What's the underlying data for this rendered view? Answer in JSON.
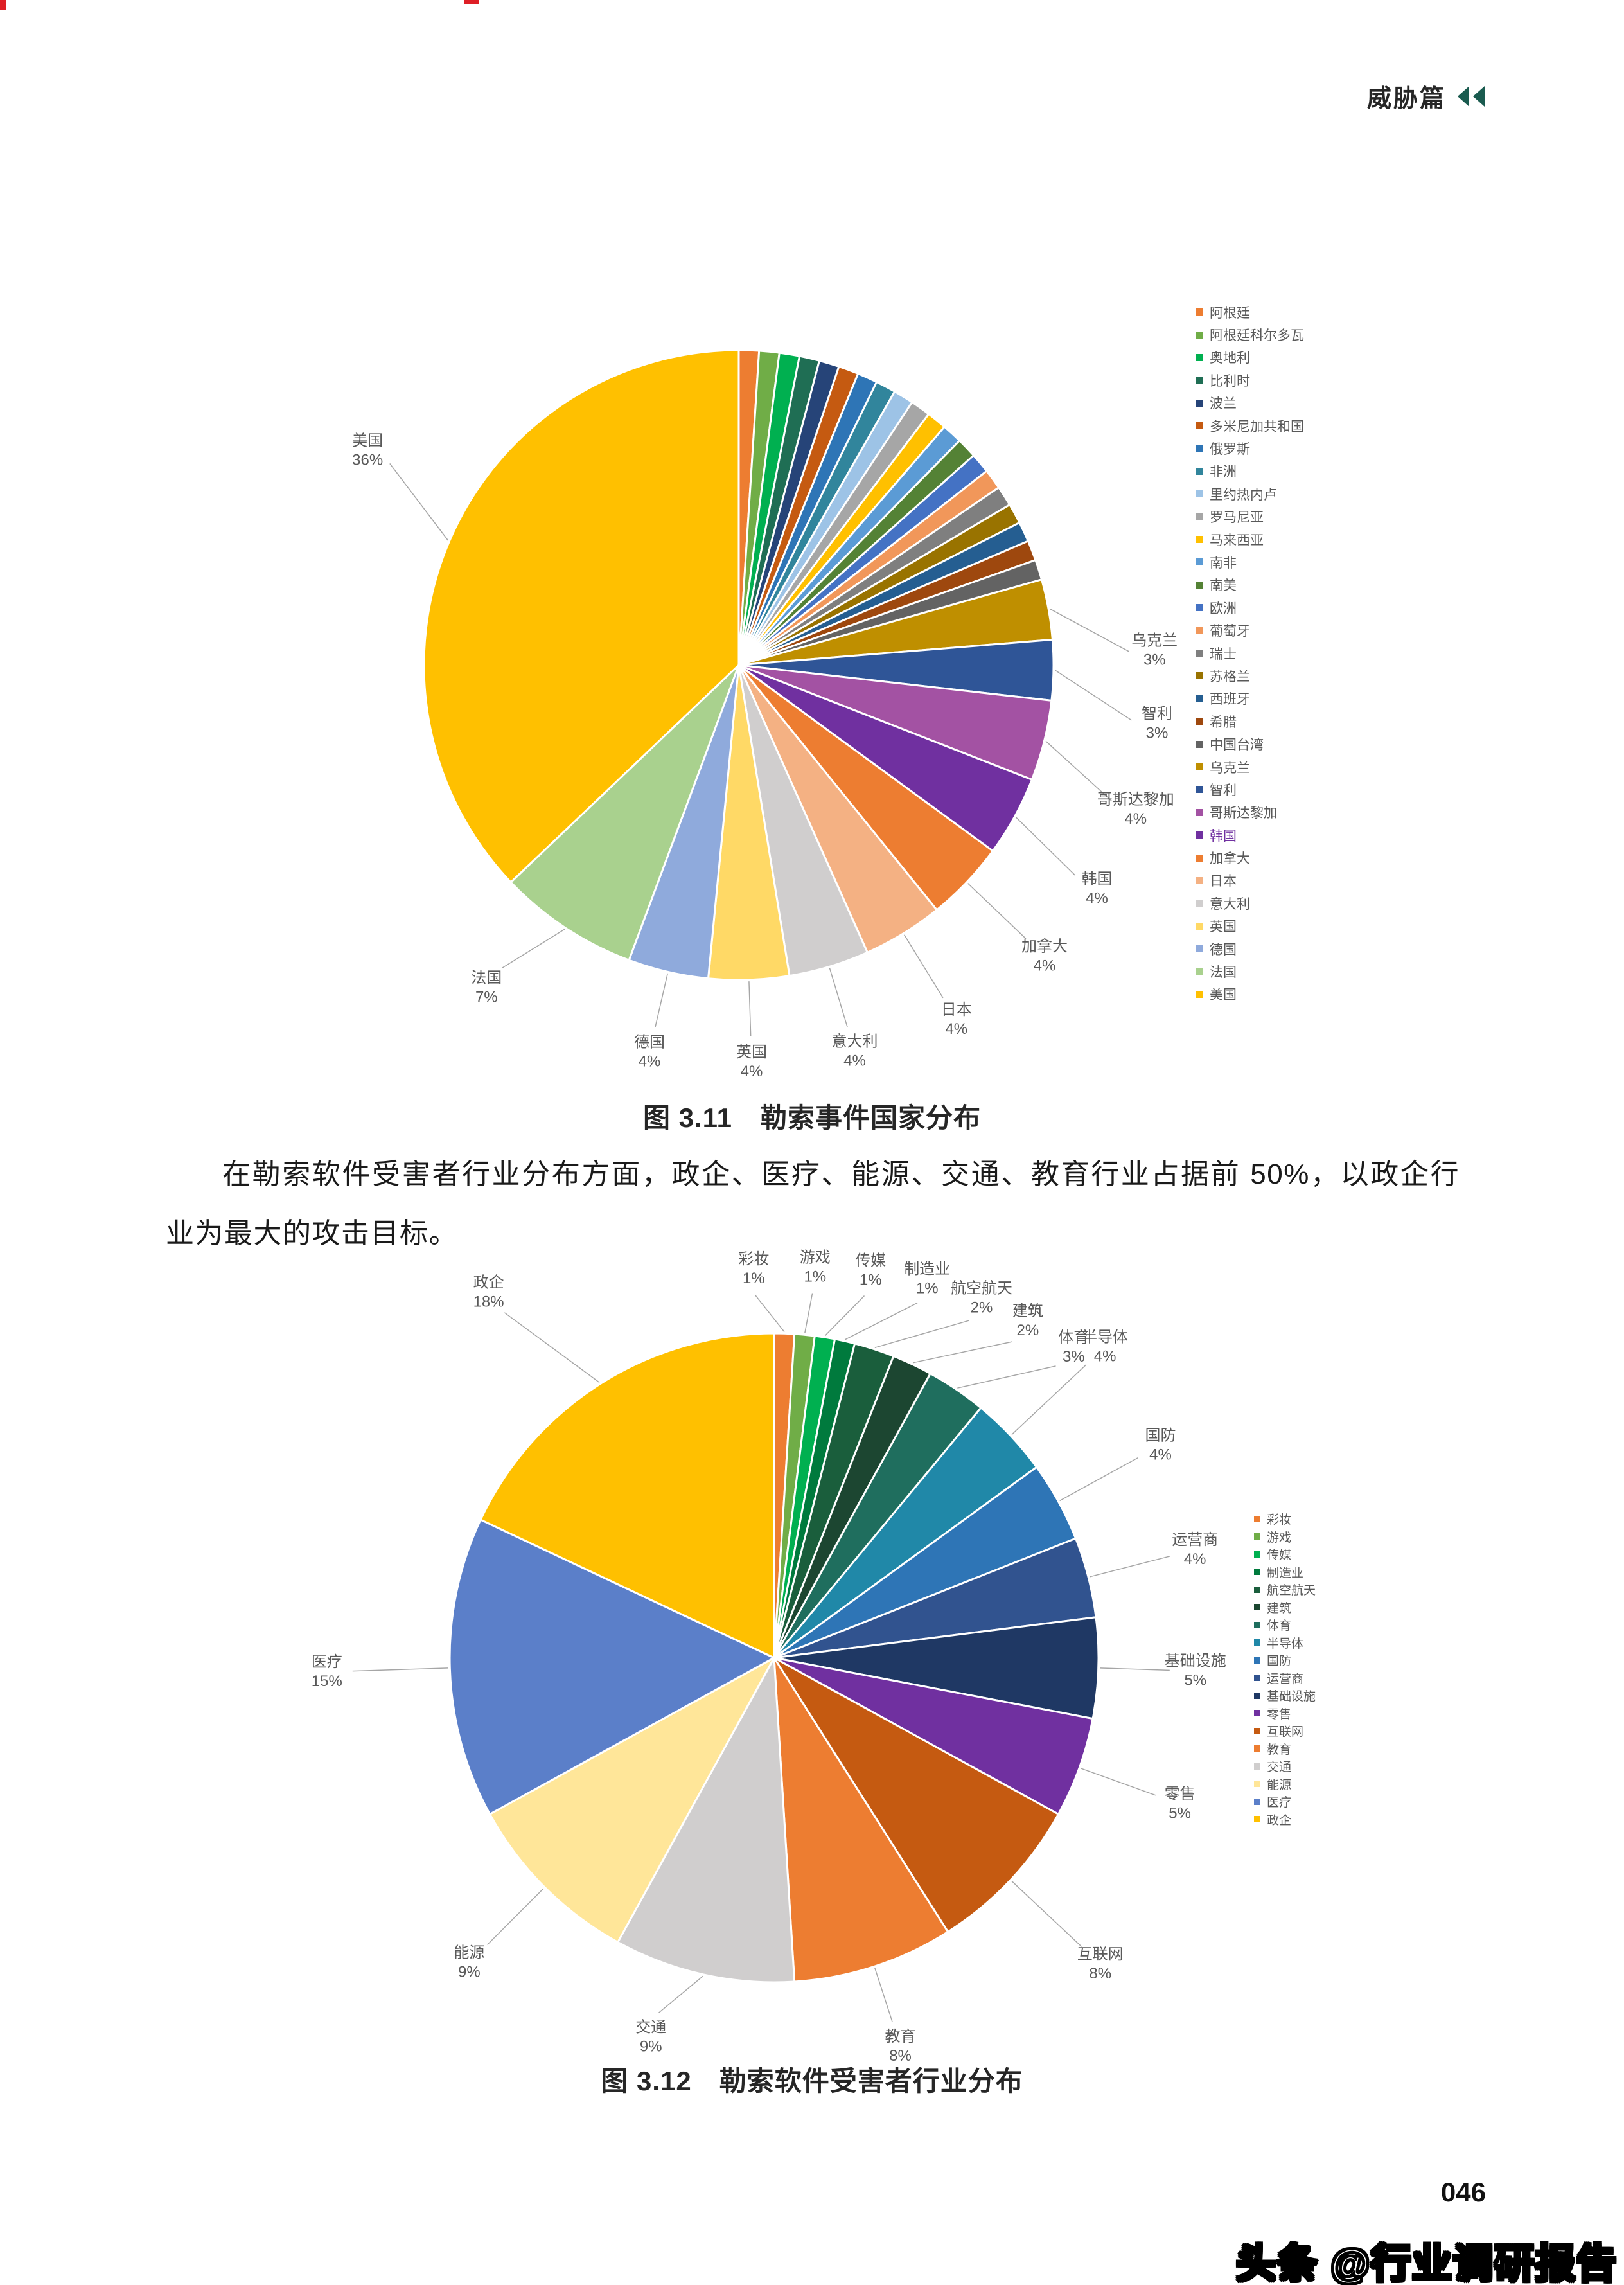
{
  "page": {
    "header_title": "威胁篇",
    "caption1": "图 3.11　勒索事件国家分布",
    "caption2": "图 3.12　勒索软件受害者行业分布",
    "paragraph": "在勒索软件受害者行业分布方面，政企、医疗、能源、交通、教育行业占据前 50%，以政企行业为最大的攻击目标。",
    "page_number": "046",
    "watermark": "头条 @行业调研报告",
    "accent_color": "#1A5B4F",
    "highlight_legend_color": "#7030A0"
  },
  "chart_data": [
    {
      "type": "pie",
      "title": "图 3.11 勒索事件国家分布",
      "legend_position": "right",
      "label_format": "name + percent",
      "slices": [
        {
          "name": "阿根廷",
          "value": 1,
          "color": "#ED7D31"
        },
        {
          "name": "阿根廷科尔多瓦",
          "value": 1,
          "color": "#70AD47"
        },
        {
          "name": "奥地利",
          "value": 1,
          "color": "#00B050"
        },
        {
          "name": "比利时",
          "value": 1,
          "color": "#1F6E54"
        },
        {
          "name": "波兰",
          "value": 1,
          "color": "#264478"
        },
        {
          "name": "多米尼加共和国",
          "value": 1,
          "color": "#C55A11"
        },
        {
          "name": "俄罗斯",
          "value": 1,
          "color": "#2E75B6"
        },
        {
          "name": "非洲",
          "value": 1,
          "color": "#31859C"
        },
        {
          "name": "里约热内卢",
          "value": 1,
          "color": "#9DC3E6"
        },
        {
          "name": "罗马尼亚",
          "value": 1,
          "color": "#A6A6A6"
        },
        {
          "name": "马来西亚",
          "value": 1,
          "color": "#FFC000"
        },
        {
          "name": "南非",
          "value": 1,
          "color": "#5B9BD5"
        },
        {
          "name": "南美",
          "value": 1,
          "color": "#548235"
        },
        {
          "name": "欧洲",
          "value": 1,
          "color": "#4472C4"
        },
        {
          "name": "葡萄牙",
          "value": 1,
          "color": "#F1975A"
        },
        {
          "name": "瑞士",
          "value": 1,
          "color": "#7F7F7F"
        },
        {
          "name": "苏格兰",
          "value": 1,
          "color": "#997300"
        },
        {
          "name": "西班牙",
          "value": 1,
          "color": "#255E91"
        },
        {
          "name": "希腊",
          "value": 1,
          "color": "#9E480E"
        },
        {
          "name": "中国台湾",
          "value": 1,
          "color": "#636363"
        },
        {
          "name": "乌克兰",
          "value": 3,
          "color": "#BF8F00",
          "label": true,
          "la": -2,
          "ld": 1.24
        },
        {
          "name": "智利",
          "value": 3,
          "color": "#2F5597",
          "label": true,
          "la": 8,
          "ld": 1.26
        },
        {
          "name": "哥斯达黎加",
          "value": 4,
          "color": "#A352A3",
          "label": true,
          "la": 20,
          "ld": 1.26
        },
        {
          "name": "韩国",
          "value": 4,
          "color": "#7030A0",
          "label": true,
          "la": 32,
          "ld": 1.26,
          "legend_highlight": true
        },
        {
          "name": "加拿大",
          "value": 4,
          "color": "#ED7D31",
          "label": true,
          "ld": 1.26
        },
        {
          "name": "日本",
          "value": 4,
          "color": "#F4B183",
          "label": true,
          "ld": 1.24
        },
        {
          "name": "意大利",
          "value": 4,
          "color": "#D0CECE",
          "label": true,
          "ld": 1.2
        },
        {
          "name": "英国",
          "value": 4,
          "color": "#FFD966",
          "label": true,
          "ld": 1.18
        },
        {
          "name": "德国",
          "value": 4,
          "color": "#8FAADC",
          "label": true,
          "ld": 1.18
        },
        {
          "name": "法国",
          "value": 7,
          "color": "#A9D18E",
          "label": true,
          "la": 128,
          "ld": 1.22
        },
        {
          "name": "美国",
          "value": 36,
          "color": "#FFC000",
          "label": true,
          "la": 210,
          "ld": 1.28
        }
      ]
    },
    {
      "type": "pie",
      "title": "图 3.12 勒索软件受害者行业分布",
      "legend_position": "right",
      "label_format": "name + percent",
      "slices": [
        {
          "name": "彩妆",
          "value": 1,
          "color": "#ED7D31",
          "label": true,
          "la": -93,
          "ld": 1.12
        },
        {
          "name": "游戏",
          "value": 1,
          "color": "#70AD47",
          "label": true,
          "la": -84,
          "ld": 1.13
        },
        {
          "name": "传媒",
          "value": 1,
          "color": "#00B050",
          "label": true,
          "la": -76,
          "ld": 1.15
        },
        {
          "name": "制造业",
          "value": 1,
          "color": "#007A3D",
          "label": true,
          "la": -68,
          "ld": 1.18
        },
        {
          "name": "航空航天",
          "value": 2,
          "color": "#1A5E3C",
          "label": true,
          "la": -60,
          "ld": 1.2
        },
        {
          "name": "建筑",
          "value": 2,
          "color": "#1C4631",
          "label": true,
          "la": -53,
          "ld": 1.22
        },
        {
          "name": "体育",
          "value": 3,
          "color": "#1F6E5E",
          "label": true,
          "la": -46,
          "ld": 1.25
        },
        {
          "name": "半导体",
          "value": 4,
          "color": "#2088A8",
          "label": true,
          "ld": 1.32
        },
        {
          "name": "国防",
          "value": 4,
          "color": "#2E75B6",
          "label": true,
          "ld": 1.28
        },
        {
          "name": "运营商",
          "value": 4,
          "color": "#31538F",
          "label": true,
          "ld": 1.26
        },
        {
          "name": "基础设施",
          "value": 5,
          "color": "#1F3864",
          "label": true,
          "ld": 1.22
        },
        {
          "name": "零售",
          "value": 5,
          "color": "#7030A0",
          "label": true,
          "ld": 1.25
        },
        {
          "name": "互联网",
          "value": 8,
          "color": "#C55A11",
          "label": true,
          "ld": 1.3
        },
        {
          "name": "教育",
          "value": 8,
          "color": "#ED7D31",
          "label": true,
          "ld": 1.18
        },
        {
          "name": "交通",
          "value": 9,
          "color": "#D0CECE",
          "label": true,
          "la": 108,
          "ld": 1.15
        },
        {
          "name": "能源",
          "value": 9,
          "color": "#FFE699",
          "label": true,
          "ld": 1.25
        },
        {
          "name": "医疗",
          "value": 15,
          "color": "#5B7FC9",
          "label": true,
          "ld": 1.3
        },
        {
          "name": "政企",
          "value": 18,
          "color": "#FFC000",
          "label": true,
          "la": 232,
          "ld": 1.35
        }
      ]
    }
  ]
}
